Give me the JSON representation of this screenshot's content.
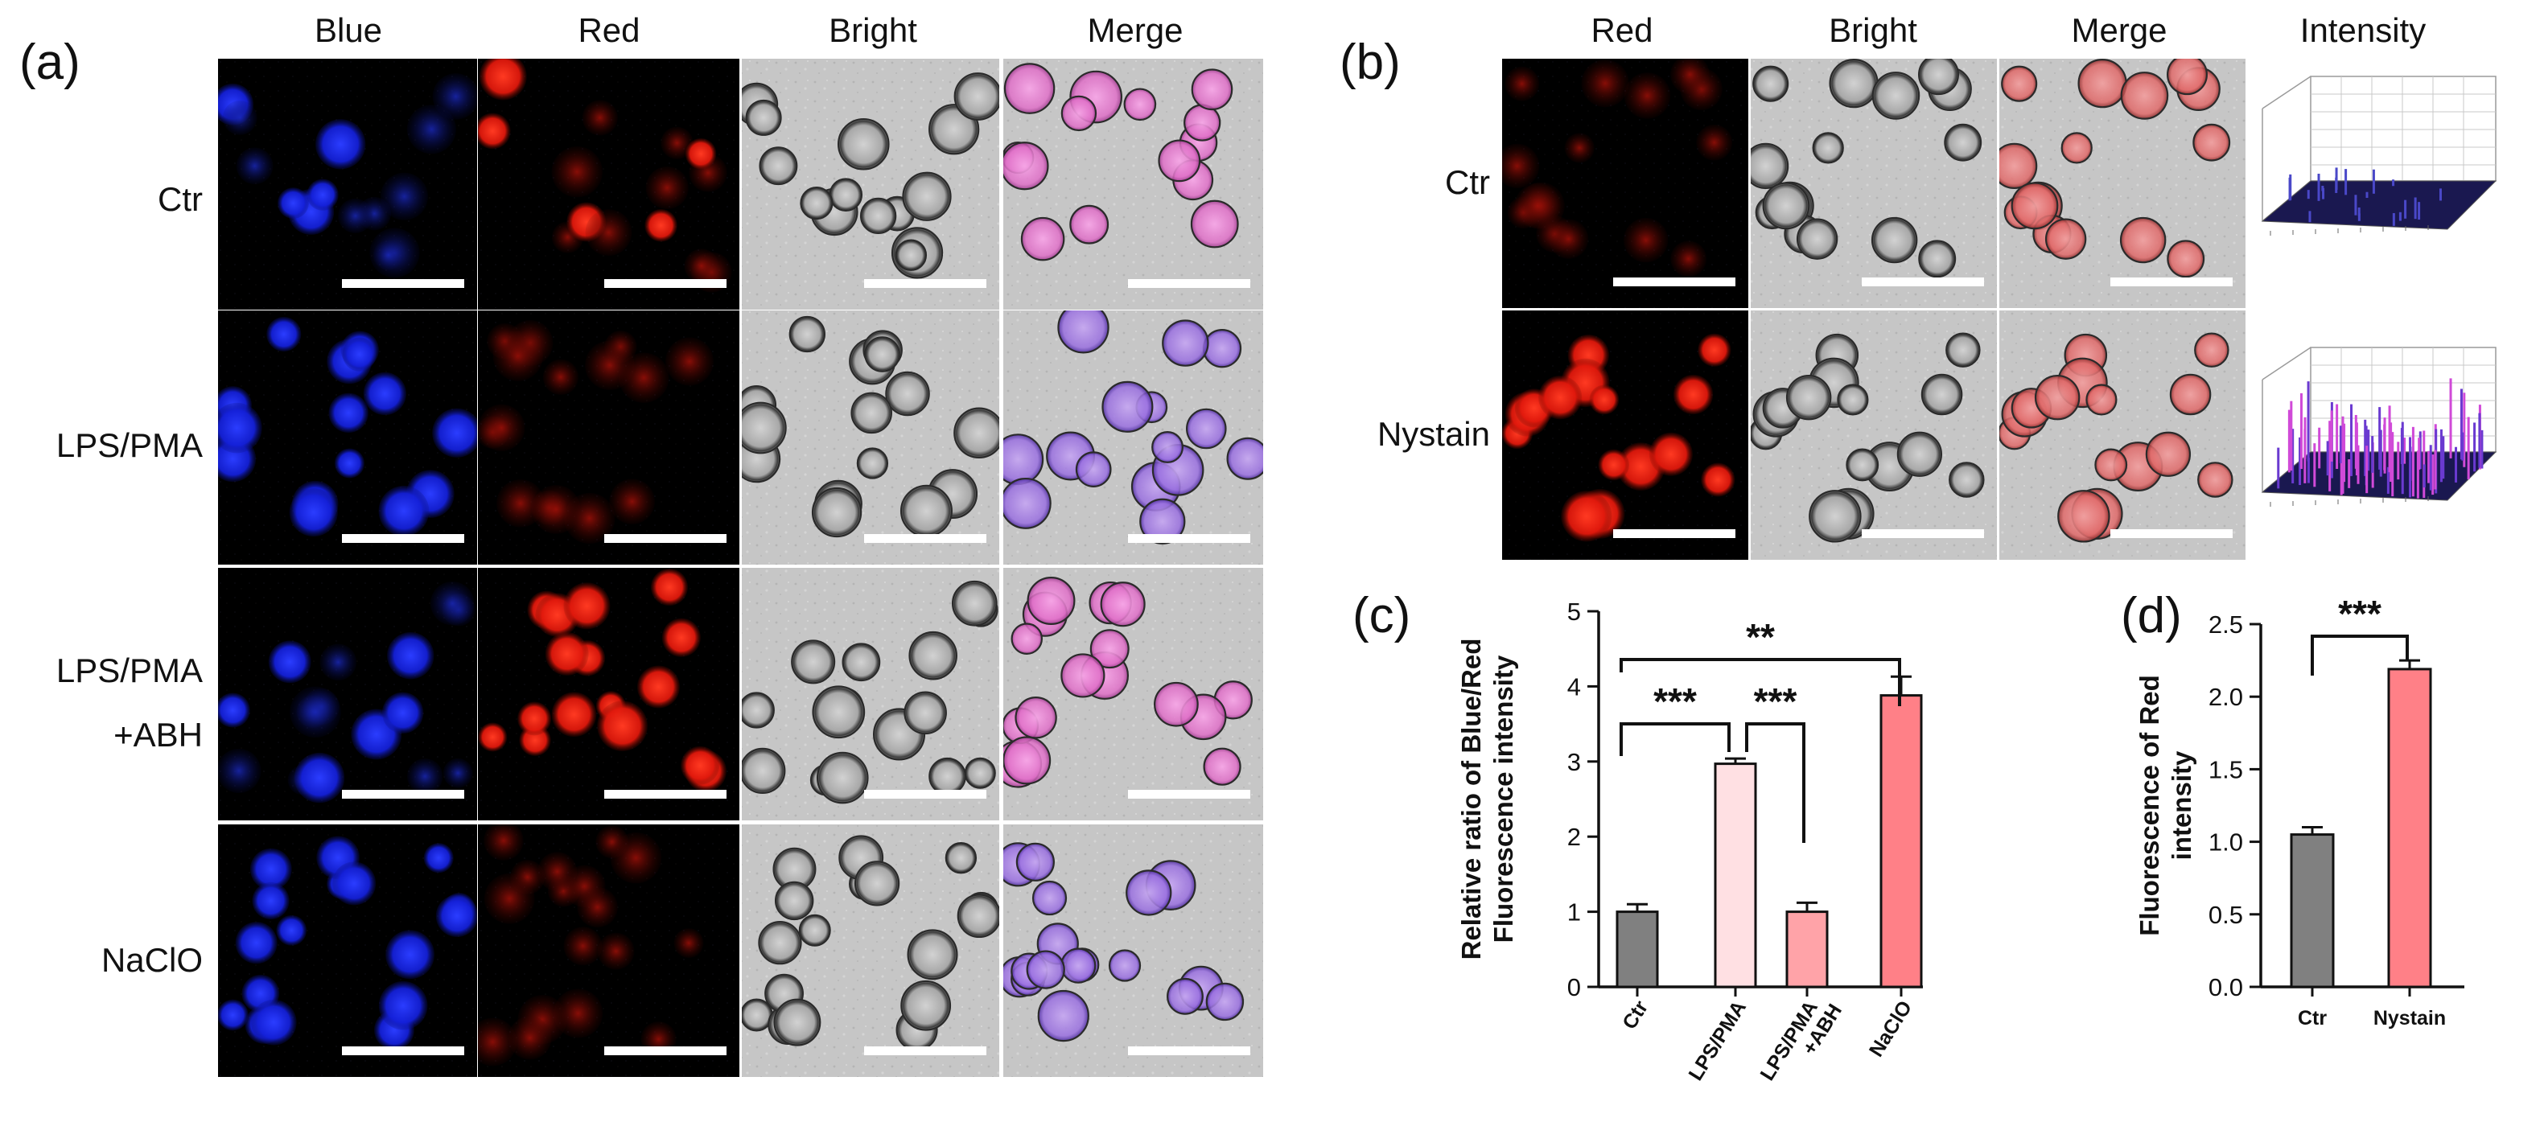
{
  "panel_a": {
    "letter": "(a)",
    "columns": [
      "Blue",
      "Red",
      "Bright",
      "Merge"
    ],
    "rows": [
      "Ctr",
      "LPS/PMA",
      "LPS/PMA\n+ABH",
      "NaClO"
    ],
    "rows_display": [
      [
        "Ctr"
      ],
      [
        "LPS/PMA"
      ],
      [
        "LPS/PMA",
        "+ABH"
      ],
      [
        "NaClO"
      ]
    ]
  },
  "panel_b": {
    "letter": "(b)",
    "columns": [
      "Red",
      "Bright",
      "Merge",
      "Intensity"
    ],
    "rows": [
      "Ctr",
      "Nystain"
    ]
  },
  "panel_c": {
    "letter": "(c)"
  },
  "panel_d": {
    "letter": "(d)"
  },
  "colors": {
    "blue_channel": "#1a2cff",
    "red_channel": "#ff2a1a",
    "bright_bg": "#c9c9c9",
    "merge_pink": "#e87ad0",
    "bar_ctr": "#808080",
    "bar_lps": "#ffe0e3",
    "bar_abh": "#ffa3a8",
    "bar_naclo": "#ff8087",
    "bar_nystain": "#ff8087"
  },
  "chart_data": [
    {
      "type": "bar",
      "panel": "c",
      "categories": [
        "Ctr",
        "LPS/PMA",
        "LPS/PMA\n+ABH",
        "NaClO"
      ],
      "categories_display": [
        [
          "Ctr"
        ],
        [
          "LPS/PMA"
        ],
        [
          "LPS/PMA",
          "+ABH"
        ],
        [
          "NaClO"
        ]
      ],
      "values": [
        1.0,
        2.97,
        1.0,
        3.88
      ],
      "errors": [
        0.1,
        0.07,
        0.12,
        0.25
      ],
      "ylabel_lines": [
        "Relative ratio of Blue/Red",
        "Fluorescence intensity"
      ],
      "ylim": [
        0,
        5
      ],
      "yticks": [
        0,
        1,
        2,
        3,
        4,
        5
      ],
      "grid": false,
      "significance": [
        {
          "from": 0,
          "to": 1,
          "label": "***"
        },
        {
          "from": 1,
          "to": 2,
          "label": "***"
        },
        {
          "from": 0,
          "to": 3,
          "label": "**"
        }
      ]
    },
    {
      "type": "bar",
      "panel": "d",
      "categories": [
        "Ctr",
        "Nystain"
      ],
      "values": [
        1.05,
        2.19
      ],
      "errors": [
        0.05,
        0.06
      ],
      "ylabel_lines": [
        "Fluorescence of Red",
        "intensity"
      ],
      "ylim": [
        0,
        2.5
      ],
      "yticks": [
        "0.0",
        "0.5",
        "1.0",
        "1.5",
        "2.0",
        "2.5"
      ],
      "grid": false,
      "significance": [
        {
          "from": 0,
          "to": 1,
          "label": "***"
        }
      ]
    }
  ]
}
